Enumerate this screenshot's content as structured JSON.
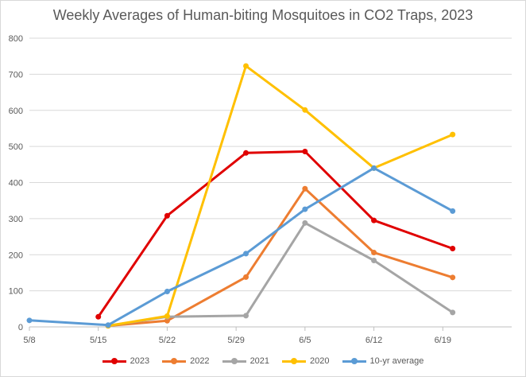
{
  "chart_data": {
    "type": "line",
    "title": "Weekly Averages of Human-biting Mosquitoes in CO2 Traps, 2023",
    "xlabel": "",
    "ylabel": "",
    "x_ticks": [
      "5/8",
      "5/15",
      "5/22",
      "5/29",
      "6/5",
      "6/12",
      "6/19"
    ],
    "x_range_days": [
      0,
      49
    ],
    "ylim": [
      0,
      800
    ],
    "y_ticks": [
      "0",
      "100",
      "200",
      "300",
      "400",
      "500",
      "600",
      "700",
      "800"
    ],
    "grid": "horizontal",
    "legend": "bottom",
    "series": [
      {
        "name": "2023",
        "color": "#e00000",
        "x": [
          "5/15",
          "5/22",
          "5/30",
          "6/5",
          "6/12",
          "6/20"
        ],
        "values": [
          28,
          308,
          482,
          486,
          295,
          217
        ]
      },
      {
        "name": "2022",
        "color": "#ed7d31",
        "x": [
          "5/16",
          "5/22",
          "5/30",
          "6/5",
          "6/12",
          "6/20"
        ],
        "values": [
          3,
          17,
          138,
          383,
          206,
          137
        ]
      },
      {
        "name": "2021",
        "color": "#a5a5a5",
        "x": [
          "5/16",
          "5/22",
          "5/30",
          "6/5",
          "6/12",
          "6/20"
        ],
        "values": [
          3,
          28,
          31,
          288,
          184,
          40
        ]
      },
      {
        "name": "2020",
        "color": "#ffc000",
        "x": [
          "5/16",
          "5/22",
          "5/30",
          "6/5",
          "6/12",
          "6/20"
        ],
        "values": [
          3,
          30,
          723,
          601,
          440,
          533
        ]
      },
      {
        "name": "10-yr average",
        "color": "#5b9bd5",
        "x": [
          "5/8",
          "5/16",
          "5/22",
          "5/30",
          "6/5",
          "6/12",
          "6/20"
        ],
        "values": [
          18,
          5,
          98,
          203,
          326,
          440,
          321
        ]
      }
    ]
  }
}
